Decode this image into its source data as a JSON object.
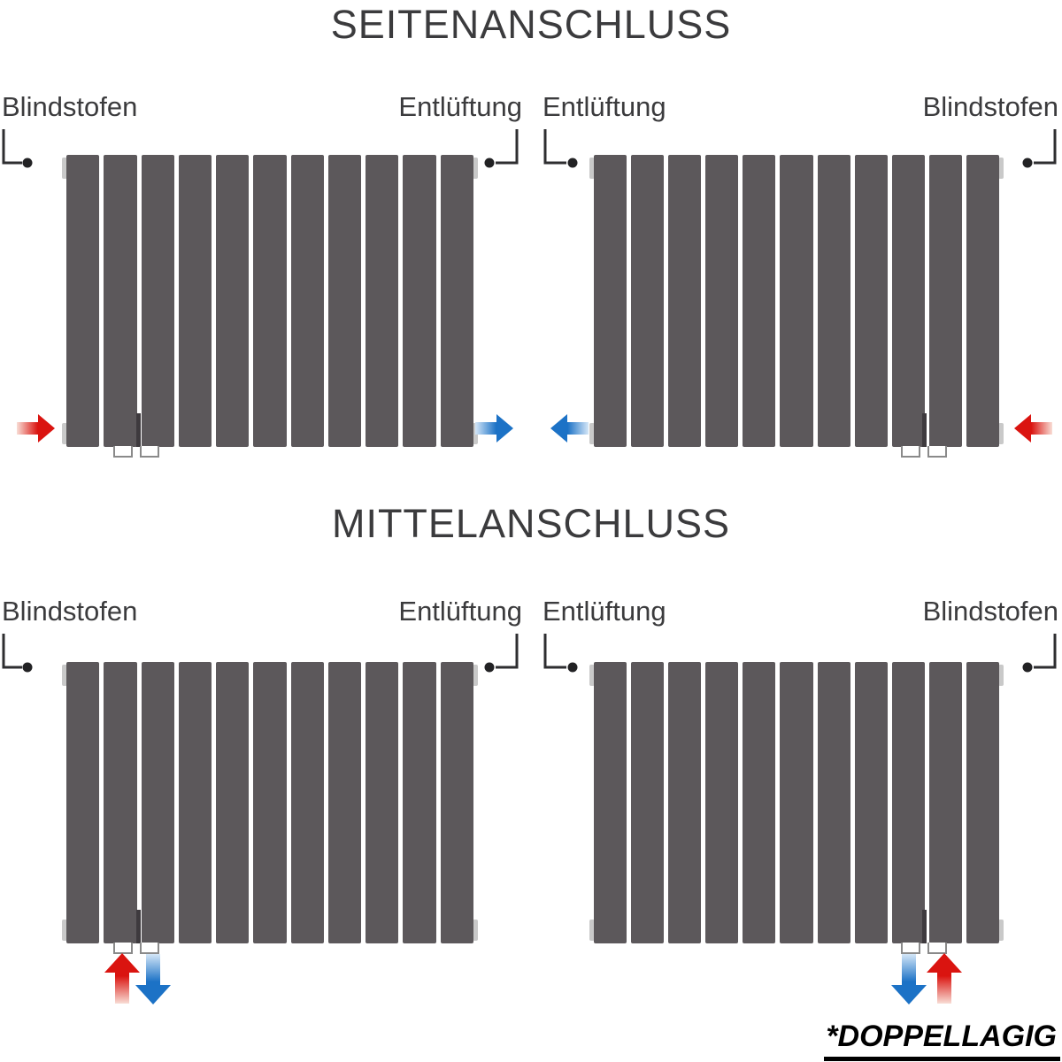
{
  "sections": [
    {
      "title": "SEITENANSCHLUSS",
      "diagrams": [
        {
          "label_left": "Blindstofen",
          "label_right": "Entlüftung",
          "panel_count": 11,
          "flow": {
            "inlet": {
              "color": "red",
              "direction": "right",
              "side": "bottom-left"
            },
            "outlet": {
              "color": "blue",
              "direction": "right",
              "side": "bottom-right"
            }
          }
        },
        {
          "label_left": "Entlüftung",
          "label_right": "Blindstofen",
          "panel_count": 11,
          "flow": {
            "outlet": {
              "color": "blue",
              "direction": "left",
              "side": "bottom-left"
            },
            "inlet": {
              "color": "red",
              "direction": "left",
              "side": "bottom-right"
            }
          }
        }
      ]
    },
    {
      "title": "MITTELANSCHLUSS",
      "diagrams": [
        {
          "label_left": "Blindstofen",
          "label_right": "Entlüftung",
          "panel_count": 11,
          "flow": {
            "inlet": {
              "color": "red",
              "direction": "up",
              "side": "bottom-center-left"
            },
            "outlet": {
              "color": "blue",
              "direction": "down",
              "side": "bottom-center-left"
            }
          }
        },
        {
          "label_left": "Entlüftung",
          "label_right": "Blindstofen",
          "panel_count": 11,
          "flow": {
            "outlet": {
              "color": "blue",
              "direction": "down",
              "side": "bottom-center-right"
            },
            "inlet": {
              "color": "red",
              "direction": "up",
              "side": "bottom-center-right"
            }
          }
        }
      ]
    }
  ],
  "footnote": "*DOPPELLAGIG",
  "colors": {
    "heading": "#3b3b3d",
    "label": "#3b3b3d",
    "panel": "#5c585b",
    "red": "#da1410",
    "red_light": "#f8ddd5",
    "blue": "#1c72c6",
    "blue_light": "#d4e6f7",
    "leader_line": "#2e2e30",
    "leader_dot": "#222224",
    "stub": "#8a8a8a",
    "endcap": "#c9c9c9",
    "connector_bar": "#3e3a3e",
    "footnote_color": "#000000"
  }
}
